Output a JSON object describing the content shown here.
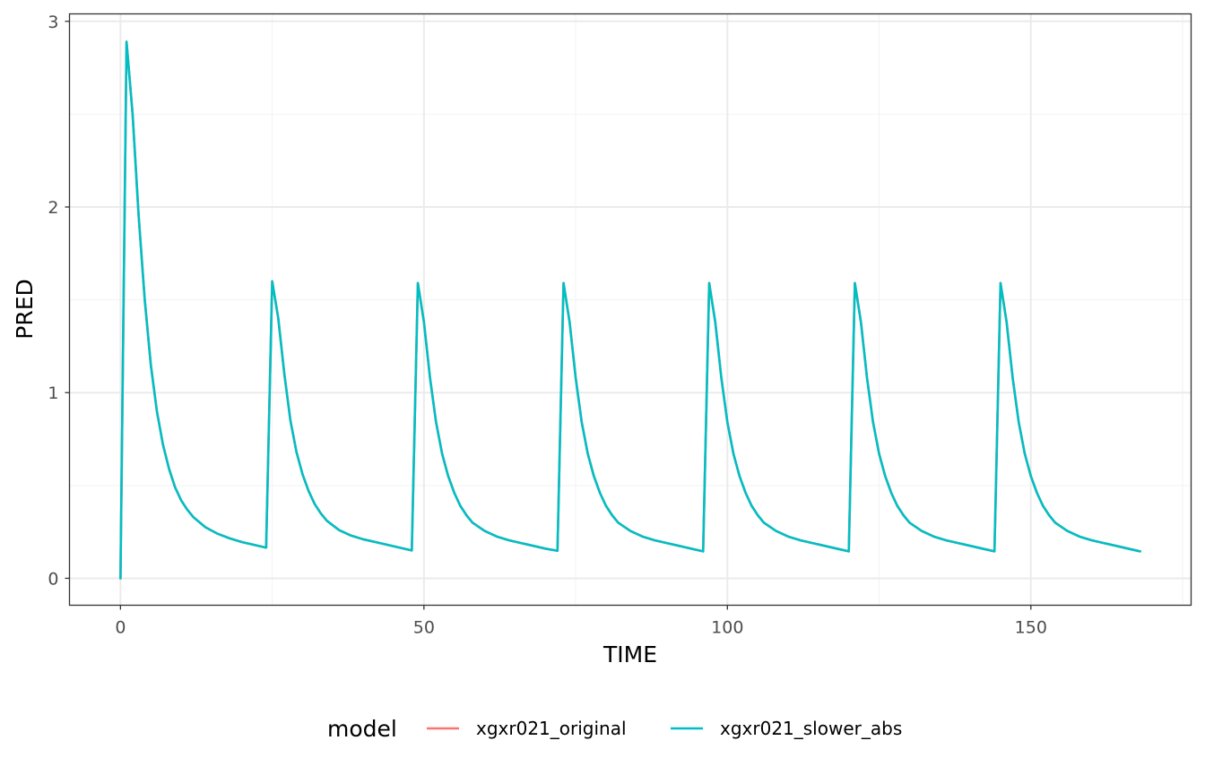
{
  "chart_data": {
    "type": "line",
    "xlabel": "TIME",
    "ylabel": "PRED",
    "xlim": [
      -8.4,
      176.4
    ],
    "ylim": [
      -0.145,
      3.04
    ],
    "x_ticks": [
      0,
      50,
      100,
      150
    ],
    "x_tick_labels": [
      "0",
      "50",
      "100",
      "150"
    ],
    "y_ticks": [
      0,
      1,
      2,
      3
    ],
    "y_tick_labels": [
      "0",
      "1",
      "2",
      "3"
    ],
    "grid": true,
    "legend": {
      "title": "model",
      "position": "bottom",
      "entries": [
        {
          "name": "xgxr021_original",
          "color": "#F8766D"
        },
        {
          "name": "xgxr021_slower_abs",
          "color": "#00BFC4"
        }
      ]
    },
    "series": [
      {
        "name": "xgxr021_original",
        "color": "#F8766D",
        "x": [
          0,
          1,
          2,
          3,
          4,
          5,
          6,
          7,
          8,
          9,
          10,
          11,
          12,
          14,
          16,
          18,
          20,
          22,
          24,
          25,
          26,
          27,
          28,
          29,
          30,
          31,
          32,
          33,
          34,
          36,
          38,
          40,
          42,
          44,
          46,
          48,
          49,
          50,
          51,
          52,
          53,
          54,
          55,
          56,
          57,
          58,
          60,
          62,
          64,
          66,
          68,
          70,
          72,
          73,
          74,
          75,
          76,
          77,
          78,
          79,
          80,
          81,
          82,
          84,
          86,
          88,
          90,
          92,
          94,
          96,
          97,
          98,
          99,
          100,
          101,
          102,
          103,
          104,
          105,
          106,
          108,
          110,
          112,
          114,
          116,
          118,
          120,
          121,
          122,
          123,
          124,
          125,
          126,
          127,
          128,
          129,
          130,
          132,
          134,
          136,
          138,
          140,
          142,
          144,
          145,
          146,
          147,
          148,
          149,
          150,
          151,
          152,
          153,
          154,
          156,
          158,
          160,
          162,
          164,
          166,
          168
        ],
        "y": [
          0,
          2.89,
          2.5,
          1.95,
          1.5,
          1.15,
          0.9,
          0.72,
          0.59,
          0.49,
          0.42,
          0.37,
          0.33,
          0.275,
          0.24,
          0.215,
          0.195,
          0.18,
          0.165,
          1.6,
          1.4,
          1.1,
          0.85,
          0.68,
          0.56,
          0.47,
          0.4,
          0.35,
          0.31,
          0.26,
          0.23,
          0.21,
          0.195,
          0.18,
          0.165,
          0.15,
          1.59,
          1.38,
          1.08,
          0.84,
          0.67,
          0.55,
          0.46,
          0.39,
          0.34,
          0.3,
          0.255,
          0.225,
          0.205,
          0.19,
          0.175,
          0.16,
          0.148,
          1.59,
          1.38,
          1.08,
          0.84,
          0.67,
          0.55,
          0.46,
          0.39,
          0.34,
          0.3,
          0.255,
          0.225,
          0.205,
          0.19,
          0.175,
          0.16,
          0.145,
          1.59,
          1.38,
          1.08,
          0.84,
          0.67,
          0.55,
          0.46,
          0.39,
          0.34,
          0.3,
          0.255,
          0.225,
          0.205,
          0.19,
          0.175,
          0.16,
          0.145,
          1.59,
          1.38,
          1.08,
          0.84,
          0.67,
          0.55,
          0.46,
          0.39,
          0.34,
          0.3,
          0.255,
          0.225,
          0.205,
          0.19,
          0.175,
          0.16,
          0.145,
          1.59,
          1.38,
          1.08,
          0.84,
          0.67,
          0.55,
          0.46,
          0.39,
          0.34,
          0.3,
          0.255,
          0.225,
          0.205,
          0.19,
          0.175,
          0.16,
          0.145
        ]
      },
      {
        "name": "xgxr021_slower_abs",
        "color": "#00BFC4",
        "x": [
          0,
          1,
          2,
          3,
          4,
          5,
          6,
          7,
          8,
          9,
          10,
          11,
          12,
          14,
          16,
          18,
          20,
          22,
          24,
          25,
          26,
          27,
          28,
          29,
          30,
          31,
          32,
          33,
          34,
          36,
          38,
          40,
          42,
          44,
          46,
          48,
          49,
          50,
          51,
          52,
          53,
          54,
          55,
          56,
          57,
          58,
          60,
          62,
          64,
          66,
          68,
          70,
          72,
          73,
          74,
          75,
          76,
          77,
          78,
          79,
          80,
          81,
          82,
          84,
          86,
          88,
          90,
          92,
          94,
          96,
          97,
          98,
          99,
          100,
          101,
          102,
          103,
          104,
          105,
          106,
          108,
          110,
          112,
          114,
          116,
          118,
          120,
          121,
          122,
          123,
          124,
          125,
          126,
          127,
          128,
          129,
          130,
          132,
          134,
          136,
          138,
          140,
          142,
          144,
          145,
          146,
          147,
          148,
          149,
          150,
          151,
          152,
          153,
          154,
          156,
          158,
          160,
          162,
          164,
          166,
          168
        ],
        "y": [
          0,
          2.89,
          2.5,
          1.95,
          1.5,
          1.15,
          0.9,
          0.72,
          0.59,
          0.49,
          0.42,
          0.37,
          0.33,
          0.275,
          0.24,
          0.215,
          0.195,
          0.18,
          0.165,
          1.6,
          1.4,
          1.1,
          0.85,
          0.68,
          0.56,
          0.47,
          0.4,
          0.35,
          0.31,
          0.26,
          0.23,
          0.21,
          0.195,
          0.18,
          0.165,
          0.15,
          1.59,
          1.38,
          1.08,
          0.84,
          0.67,
          0.55,
          0.46,
          0.39,
          0.34,
          0.3,
          0.255,
          0.225,
          0.205,
          0.19,
          0.175,
          0.16,
          0.148,
          1.59,
          1.38,
          1.08,
          0.84,
          0.67,
          0.55,
          0.46,
          0.39,
          0.34,
          0.3,
          0.255,
          0.225,
          0.205,
          0.19,
          0.175,
          0.16,
          0.145,
          1.59,
          1.38,
          1.08,
          0.84,
          0.67,
          0.55,
          0.46,
          0.39,
          0.34,
          0.3,
          0.255,
          0.225,
          0.205,
          0.19,
          0.175,
          0.16,
          0.145,
          1.59,
          1.38,
          1.08,
          0.84,
          0.67,
          0.55,
          0.46,
          0.39,
          0.34,
          0.3,
          0.255,
          0.225,
          0.205,
          0.19,
          0.175,
          0.16,
          0.145,
          1.59,
          1.38,
          1.08,
          0.84,
          0.67,
          0.55,
          0.46,
          0.39,
          0.34,
          0.3,
          0.255,
          0.225,
          0.205,
          0.19,
          0.175,
          0.16,
          0.145
        ]
      }
    ]
  }
}
